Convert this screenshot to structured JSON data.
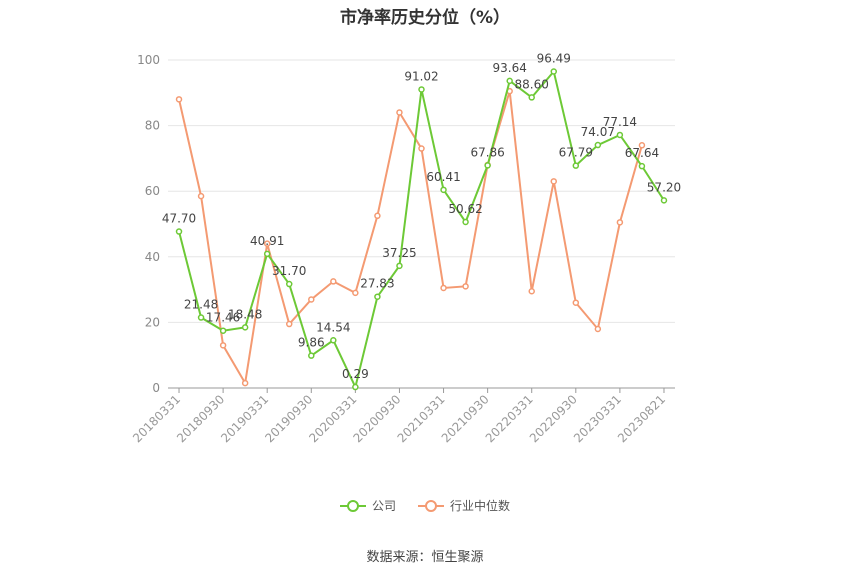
{
  "chart_data": {
    "type": "line",
    "title": "市净率历史分位（%）",
    "ylim": [
      0,
      100
    ],
    "yticks": [
      0,
      20,
      40,
      60,
      80,
      100
    ],
    "x_tick_labels": [
      "20180331",
      "20180930",
      "20190331",
      "20190930",
      "20200331",
      "20200930",
      "20210331",
      "20210930",
      "20220331",
      "20220930",
      "20230331",
      "20230821"
    ],
    "series": [
      {
        "name": "公司",
        "color": "#6dc936",
        "values": [
          47.7,
          21.48,
          17.46,
          18.48,
          40.91,
          31.7,
          9.86,
          14.54,
          0.29,
          27.83,
          37.25,
          91.02,
          60.41,
          50.62,
          67.86,
          93.64,
          88.6,
          96.49,
          67.79,
          74.07,
          77.14,
          67.64,
          57.2
        ],
        "labels": [
          "47.70",
          "21.48",
          "17.46",
          "18.48",
          "40.91",
          "31.70",
          "9.86",
          "14.54",
          "0.29",
          "27.83",
          "37.25",
          "91.02",
          "60.41",
          "50.62",
          "67.86",
          "93.64",
          "88.60",
          "96.49",
          "67.79",
          "74.07",
          "77.14",
          "67.64",
          "57.20"
        ]
      },
      {
        "name": "行业中位数",
        "color": "#f49a72",
        "values": [
          88.0,
          58.5,
          13.0,
          1.5,
          44.0,
          19.5,
          27.0,
          32.5,
          29.0,
          52.5,
          84.0,
          73.0,
          30.5,
          31.0,
          68.0,
          90.5,
          29.5,
          63.0,
          26.0,
          18.0,
          50.5,
          74.0,
          null
        ]
      }
    ],
    "legend_position": "bottom-center",
    "grid": true
  },
  "source_text": "数据来源：恒生聚源"
}
